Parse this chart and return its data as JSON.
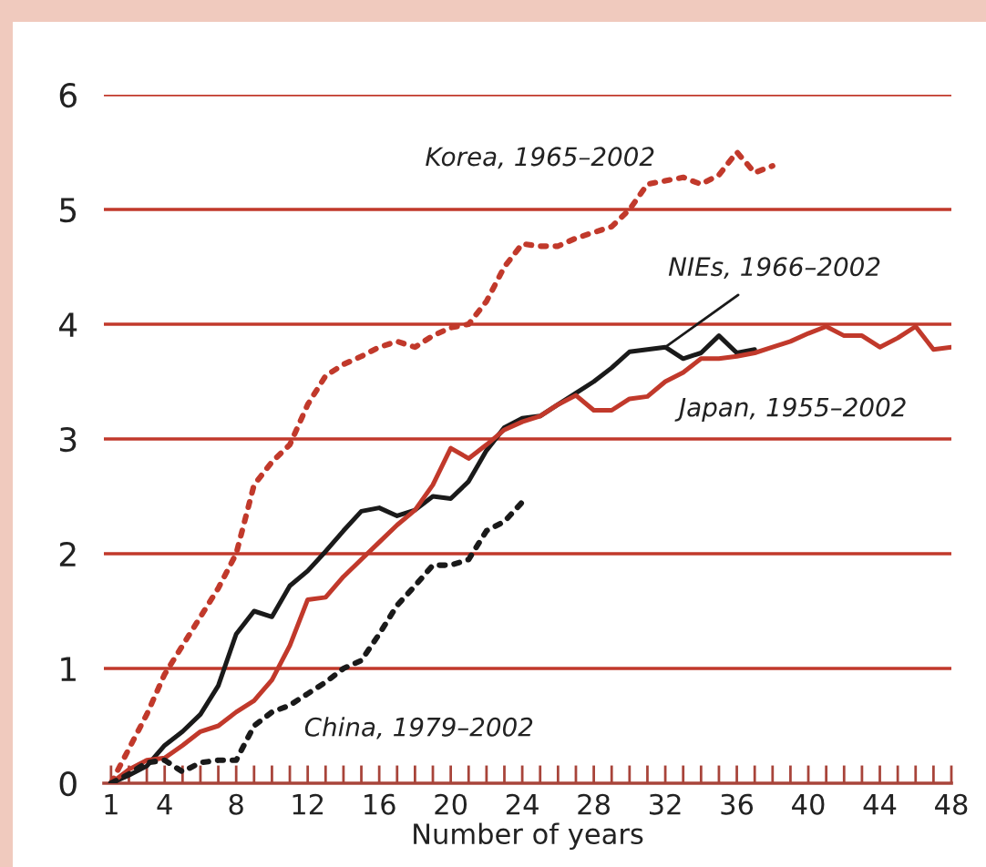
{
  "chart_data": {
    "type": "line",
    "xlabel": "Number of years",
    "xlim": [
      0.6,
      48
    ],
    "ylim": [
      0,
      6
    ],
    "grid": "y",
    "yticks": [
      0,
      1,
      2,
      3,
      4,
      5,
      6
    ],
    "xticks": [
      1,
      {
        "value": 2,
        "label": null
      },
      {
        "value": 3,
        "label": null
      },
      4,
      {
        "value": 5,
        "label": null
      },
      {
        "value": 6,
        "label": null
      },
      {
        "value": 7,
        "label": null
      },
      8,
      {
        "value": 9,
        "label": null
      },
      {
        "value": 10,
        "label": null
      },
      {
        "value": 11,
        "label": null
      },
      12,
      {
        "value": 13,
        "label": null
      },
      {
        "value": 14,
        "label": null
      },
      {
        "value": 15,
        "label": null
      },
      16,
      {
        "value": 17,
        "label": null
      },
      {
        "value": 18,
        "label": null
      },
      {
        "value": 19,
        "label": null
      },
      20,
      {
        "value": 21,
        "label": null
      },
      {
        "value": 22,
        "label": null
      },
      {
        "value": 23,
        "label": null
      },
      24,
      {
        "value": 25,
        "label": null
      },
      {
        "value": 26,
        "label": null
      },
      {
        "value": 27,
        "label": null
      },
      28,
      {
        "value": 29,
        "label": null
      },
      {
        "value": 30,
        "label": null
      },
      {
        "value": 31,
        "label": null
      },
      32,
      {
        "value": 33,
        "label": null
      },
      {
        "value": 34,
        "label": null
      },
      {
        "value": 35,
        "label": null
      },
      36,
      {
        "value": 37,
        "label": null
      },
      {
        "value": 38,
        "label": null
      },
      {
        "value": 39,
        "label": null
      },
      40,
      {
        "value": 41,
        "label": null
      },
      {
        "value": 42,
        "label": null
      },
      {
        "value": 43,
        "label": null
      },
      44,
      {
        "value": 45,
        "label": null
      },
      {
        "value": 46,
        "label": null
      },
      {
        "value": 47,
        "label": null
      },
      48
    ],
    "series": [
      {
        "name": "Korea, 1965–2002",
        "color": "#c1392b",
        "line_style": "dotted",
        "x": [
          1,
          2,
          3,
          4,
          5,
          6,
          7,
          8,
          9,
          10,
          11,
          12,
          13,
          14,
          15,
          16,
          17,
          18,
          19,
          20,
          21,
          22,
          23,
          24,
          25,
          26,
          27,
          28,
          29,
          30,
          31,
          32,
          33,
          34,
          35,
          36,
          37,
          38
        ],
        "values": [
          0,
          0.3,
          0.6,
          0.95,
          1.2,
          1.45,
          1.7,
          2.0,
          2.6,
          2.8,
          2.95,
          3.3,
          3.55,
          3.65,
          3.72,
          3.8,
          3.85,
          3.8,
          3.9,
          3.97,
          4.0,
          4.2,
          4.5,
          4.7,
          4.68,
          4.68,
          4.75,
          4.8,
          4.85,
          5.0,
          5.22,
          5.25,
          5.28,
          5.22,
          5.3,
          5.5,
          5.32,
          5.38
        ]
      },
      {
        "name": "NIEs, 1966–2002",
        "color": "#1a1a1a",
        "line_style": "solid",
        "x": [
          1,
          2,
          3,
          4,
          5,
          6,
          7,
          8,
          9,
          10,
          11,
          12,
          13,
          14,
          15,
          16,
          17,
          18,
          19,
          20,
          21,
          22,
          23,
          24,
          25,
          26,
          27,
          28,
          29,
          30,
          31,
          32,
          33,
          34,
          35,
          36,
          37
        ],
        "values": [
          0,
          0.07,
          0.15,
          0.33,
          0.45,
          0.6,
          0.85,
          1.3,
          1.5,
          1.45,
          1.72,
          1.85,
          2.02,
          2.2,
          2.37,
          2.4,
          2.33,
          2.38,
          2.5,
          2.48,
          2.63,
          2.9,
          3.1,
          3.18,
          3.2,
          3.3,
          3.4,
          3.5,
          3.62,
          3.76,
          3.78,
          3.8,
          3.7,
          3.75,
          3.9,
          3.75,
          3.78
        ]
      },
      {
        "name": "Japan, 1955–2002",
        "color": "#c1392b",
        "line_style": "solid",
        "x": [
          1,
          2,
          3,
          4,
          5,
          6,
          7,
          8,
          9,
          10,
          11,
          12,
          13,
          14,
          15,
          16,
          17,
          18,
          19,
          20,
          21,
          22,
          23,
          24,
          25,
          26,
          27,
          28,
          29,
          30,
          31,
          32,
          33,
          34,
          35,
          36,
          37,
          38,
          39,
          40,
          41,
          42,
          43,
          44,
          45,
          46,
          47,
          48
        ],
        "values": [
          0,
          0.12,
          0.2,
          0.22,
          0.33,
          0.45,
          0.5,
          0.62,
          0.72,
          0.9,
          1.2,
          1.6,
          1.62,
          1.8,
          1.95,
          2.1,
          2.25,
          2.38,
          2.6,
          2.92,
          2.83,
          2.95,
          3.08,
          3.15,
          3.2,
          3.3,
          3.38,
          3.25,
          3.25,
          3.35,
          3.37,
          3.5,
          3.58,
          3.7,
          3.7,
          3.72,
          3.75,
          3.8,
          3.85,
          3.92,
          3.98,
          3.9,
          3.9,
          3.8,
          3.88,
          3.98,
          3.78,
          3.8
        ]
      },
      {
        "name": "China, 1979–2002",
        "color": "#1a1a1a",
        "line_style": "dotted",
        "x": [
          1,
          2,
          3,
          4,
          5,
          6,
          7,
          8,
          9,
          10,
          11,
          12,
          13,
          14,
          15,
          16,
          17,
          18,
          19,
          20,
          21,
          22,
          23,
          24
        ],
        "values": [
          0,
          0.08,
          0.18,
          0.2,
          0.1,
          0.18,
          0.2,
          0.2,
          0.5,
          0.62,
          0.68,
          0.78,
          0.88,
          1.0,
          1.07,
          1.3,
          1.55,
          1.72,
          1.9,
          1.9,
          1.95,
          2.2,
          2.28,
          2.45
        ]
      }
    ]
  }
}
